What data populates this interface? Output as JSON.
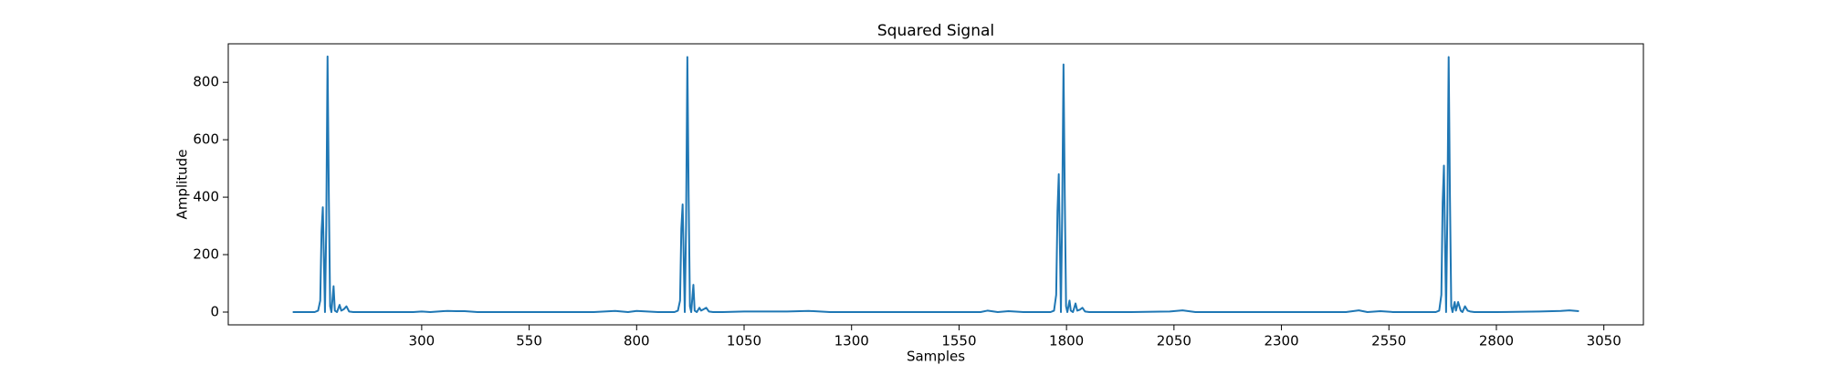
{
  "chart_data": {
    "type": "line",
    "title": "Squared Signal",
    "x_label": "Samples",
    "y_label": "Amplitude",
    "color": "#1f77b4",
    "grid": false,
    "xlim": [
      -150,
      3142
    ],
    "ylim": [
      -44.5,
      934
    ],
    "xticks": [
      300,
      550,
      800,
      1050,
      1300,
      1550,
      1800,
      2050,
      2300,
      2550,
      2800,
      3050
    ],
    "yticks": [
      0,
      200,
      400,
      600,
      800
    ],
    "x": [
      0,
      30,
      51,
      59,
      64,
      67,
      70,
      73,
      75,
      78,
      81,
      84,
      87,
      90,
      95,
      98,
      103,
      109,
      113,
      119,
      125,
      131,
      141,
      200,
      280,
      300,
      320,
      350,
      360,
      380,
      400,
      430,
      500,
      700,
      750,
      780,
      800,
      850,
      880,
      888,
      896,
      901,
      904,
      907,
      910,
      912,
      915,
      918,
      921,
      924,
      927,
      932,
      935,
      940,
      946,
      950,
      956,
      962,
      968,
      978,
      1000,
      1050,
      1100,
      1150,
      1200,
      1250,
      1300,
      1500,
      1600,
      1616,
      1640,
      1665,
      1700,
      1752,
      1763,
      1771,
      1776,
      1779,
      1782,
      1785,
      1787,
      1790,
      1793,
      1796,
      1799,
      1802,
      1807,
      1810,
      1815,
      1821,
      1825,
      1831,
      1837,
      1843,
      1853,
      1950,
      2040,
      2070,
      2100,
      2200,
      2400,
      2450,
      2480,
      2500,
      2530,
      2560,
      2600,
      2649,
      2659,
      2667,
      2672,
      2675,
      2678,
      2681,
      2683,
      2686,
      2689,
      2692,
      2695,
      2698,
      2703,
      2706,
      2711,
      2717,
      2721,
      2727,
      2733,
      2739,
      2749,
      2800,
      2900,
      2950,
      2970,
      2992
    ],
    "values": [
      0,
      0,
      0,
      5,
      40,
      280,
      365,
      150,
      0,
      300,
      890,
      400,
      20,
      0,
      90,
      5,
      0,
      25,
      5,
      10,
      20,
      2,
      0,
      0,
      0,
      2,
      0,
      3,
      4,
      3,
      3,
      0,
      0,
      0,
      4,
      0,
      4,
      0,
      0,
      0,
      5,
      40,
      290,
      375,
      150,
      0,
      300,
      888,
      400,
      20,
      0,
      95,
      5,
      0,
      15,
      5,
      10,
      15,
      2,
      0,
      0,
      2,
      2,
      2,
      4,
      0,
      0,
      0,
      0,
      5,
      0,
      3,
      0,
      0,
      0,
      5,
      60,
      350,
      480,
      200,
      0,
      350,
      862,
      400,
      20,
      0,
      40,
      5,
      0,
      30,
      5,
      8,
      15,
      2,
      0,
      0,
      2,
      6,
      0,
      0,
      0,
      0,
      6,
      0,
      3,
      0,
      0,
      0,
      0,
      5,
      60,
      380,
      510,
      200,
      0,
      350,
      888,
      400,
      20,
      0,
      35,
      5,
      35,
      5,
      0,
      20,
      5,
      2,
      0,
      0,
      2,
      4,
      6,
      3
    ]
  }
}
